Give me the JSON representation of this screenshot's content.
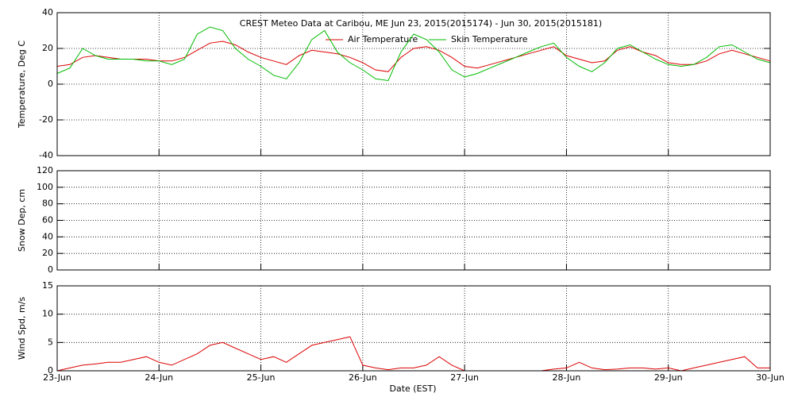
{
  "chart_data": [
    {
      "type": "line",
      "title": "CREST Meteo Data at Caribou, ME   Jun 23, 2015(2015174) - Jun 30, 2015(2015181)",
      "y_label": "Temperature, Deg C",
      "ylim": [
        -40,
        40
      ],
      "yticks": [
        -40,
        -20,
        0,
        20,
        40
      ],
      "xlim": [
        0,
        7
      ],
      "grid": true,
      "x": [
        0,
        0.125,
        0.25,
        0.375,
        0.5,
        0.625,
        0.75,
        0.875,
        1,
        1.125,
        1.25,
        1.375,
        1.5,
        1.625,
        1.75,
        1.875,
        2,
        2.125,
        2.25,
        2.375,
        2.5,
        2.625,
        2.75,
        2.875,
        3,
        3.125,
        3.25,
        3.375,
        3.5,
        3.625,
        3.75,
        3.875,
        4,
        4.125,
        4.25,
        4.375,
        4.5,
        4.625,
        4.75,
        4.875,
        5,
        5.125,
        5.25,
        5.375,
        5.5,
        5.625,
        5.75,
        5.875,
        6,
        6.125,
        6.25,
        6.375,
        6.5,
        6.625,
        6.75,
        6.875,
        7
      ],
      "series": [
        {
          "name": "Air Temperature",
          "color": "#dd0000",
          "values": [
            10,
            11,
            15,
            16,
            15,
            14,
            14,
            14,
            13,
            13,
            15,
            19,
            23,
            24,
            22,
            18,
            15,
            13,
            11,
            16,
            19,
            18,
            17,
            15,
            12,
            8,
            7,
            15,
            20,
            21,
            19,
            15,
            10,
            9,
            11,
            13,
            15,
            17,
            19,
            21,
            16,
            14,
            12,
            13,
            19,
            21,
            18,
            16,
            12,
            11,
            11,
            13,
            17,
            19,
            17,
            15,
            13
          ]
        },
        {
          "name": "Skin Temperature",
          "color": "#00bb00",
          "values": [
            6,
            9,
            20,
            16,
            14,
            14,
            14,
            13,
            13,
            11,
            14,
            28,
            32,
            30,
            20,
            14,
            10,
            5,
            3,
            12,
            25,
            30,
            18,
            12,
            8,
            3,
            2,
            18,
            28,
            25,
            18,
            8,
            4,
            6,
            9,
            12,
            15,
            18,
            21,
            23,
            15,
            10,
            7,
            12,
            20,
            22,
            18,
            14,
            11,
            10,
            11,
            15,
            21,
            22,
            18,
            14,
            12
          ]
        }
      ]
    },
    {
      "type": "line",
      "y_label": "Snow Dep, cm",
      "ylim": [
        0,
        120
      ],
      "yticks": [
        0,
        20,
        40,
        60,
        80,
        100,
        120
      ],
      "xlim": [
        0,
        7
      ],
      "grid": true,
      "series": []
    },
    {
      "type": "line",
      "y_label": "Wind Spd, m/s",
      "x_label": "Date (EST)",
      "ylim": [
        0,
        15
      ],
      "yticks": [
        0,
        5,
        10,
        15
      ],
      "xlim": [
        0,
        7
      ],
      "grid": true,
      "xticks": [
        {
          "value": 0,
          "label": "23-Jun"
        },
        {
          "value": 1,
          "label": "24-Jun"
        },
        {
          "value": 2,
          "label": "25-Jun"
        },
        {
          "value": 3,
          "label": "26-Jun"
        },
        {
          "value": 4,
          "label": "27-Jun"
        },
        {
          "value": 5,
          "label": "28-Jun"
        },
        {
          "value": 6,
          "label": "29-Jun"
        },
        {
          "value": 7,
          "label": "30-Jun"
        }
      ],
      "x": [
        0,
        0.125,
        0.25,
        0.375,
        0.5,
        0.625,
        0.75,
        0.875,
        1,
        1.125,
        1.25,
        1.375,
        1.5,
        1.625,
        1.75,
        1.875,
        2,
        2.125,
        2.25,
        2.375,
        2.5,
        2.625,
        2.75,
        2.875,
        3,
        3.125,
        3.25,
        3.375,
        3.5,
        3.625,
        3.75,
        3.875,
        4,
        4.125,
        4.25,
        4.375,
        4.5,
        4.625,
        4.75,
        4.875,
        5,
        5.125,
        5.25,
        5.375,
        5.5,
        5.625,
        5.75,
        5.875,
        6,
        6.125,
        6.25,
        6.375,
        6.5,
        6.625,
        6.75,
        6.875,
        7
      ],
      "series": [
        {
          "color": "#dd0000",
          "values": [
            0,
            0.5,
            1,
            1.2,
            1.5,
            1.5,
            2,
            2.5,
            1.5,
            1,
            2,
            3,
            4.5,
            5,
            4,
            3,
            2,
            2.5,
            1.5,
            3,
            4.5,
            5,
            5.5,
            6,
            1,
            0.5,
            0.2,
            0.5,
            0.5,
            1,
            2.5,
            1,
            0,
            0,
            0,
            0,
            0,
            0,
            0,
            0.3,
            0.5,
            1.5,
            0.5,
            0.2,
            0.3,
            0.5,
            0.5,
            0.3,
            0.5,
            0,
            0.5,
            1,
            1.5,
            2,
            2.5,
            0.5,
            0.5
          ]
        }
      ]
    }
  ]
}
